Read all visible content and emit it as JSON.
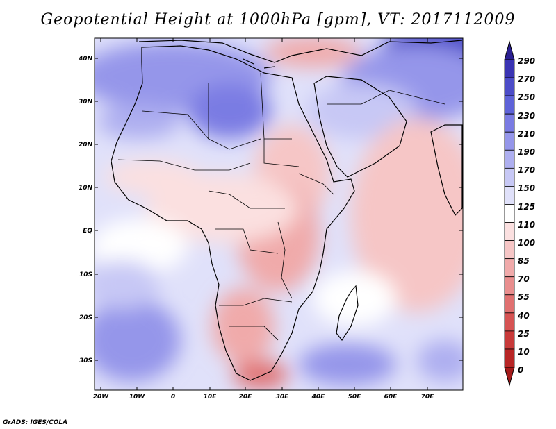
{
  "title": "Geopotential Height at 1000hPa [gpm], VT: 2017112009",
  "footer": "GrADS: IGES/COLA",
  "lat_labels": [
    "40N",
    "30N",
    "20N",
    "10N",
    "EQ",
    "10S",
    "20S",
    "30S"
  ],
  "lon_labels": [
    "20W",
    "10W",
    "0",
    "10E",
    "20E",
    "30E",
    "40E",
    "50E",
    "60E",
    "70E"
  ],
  "colorbar": {
    "levels": [
      "290",
      "270",
      "250",
      "230",
      "210",
      "190",
      "170",
      "150",
      "125",
      "110",
      "100",
      "85",
      "70",
      "55",
      "40",
      "25",
      "10",
      "0"
    ],
    "colors": [
      "#2b1f93",
      "#3a34b3",
      "#4c4cc8",
      "#5e62d8",
      "#7a7be3",
      "#9596ea",
      "#aeaff0",
      "#c7c8f5",
      "#e0e1fa",
      "#ffffff",
      "#fbe0e0",
      "#f6c6c6",
      "#f0aaaa",
      "#e98e8e",
      "#e07070",
      "#d65353",
      "#c83a3a",
      "#b82626",
      "#a51a1a"
    ]
  },
  "palette": {
    "frame": "#000000",
    "land_border": "#000000",
    "ocean_base": "#e0e1fa"
  }
}
